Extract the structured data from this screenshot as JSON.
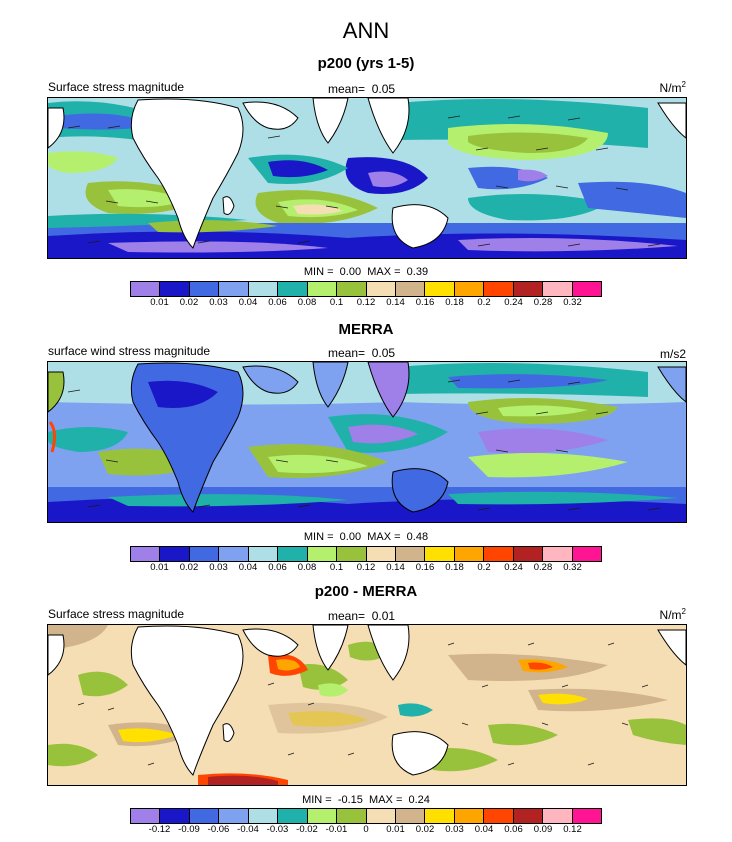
{
  "title": "ANN",
  "colors": {
    "land": "#ffffff",
    "arrow": "#1a1a1a"
  },
  "chart_data": [
    {
      "type": "heatmap",
      "title": "p200 (yrs 1-5)",
      "left_label": "Surface stress magnitude",
      "mean_label": "mean=",
      "mean_value": "0.05",
      "units_base": "N/m",
      "units_sup": "2",
      "min_label": "MIN =",
      "min_value": "0.00",
      "max_label": "MAX =",
      "max_value": "0.39",
      "colorbar": {
        "labels": [
          "0.01",
          "0.02",
          "0.03",
          "0.04",
          "0.06",
          "0.08",
          "0.1",
          "0.12",
          "0.14",
          "0.16",
          "0.18",
          "0.2",
          "0.24",
          "0.28",
          "0.32"
        ],
        "colors": [
          "#9f7fe8",
          "#1a17c8",
          "#4169e1",
          "#7fa2f0",
          "#afdfe6",
          "#20b2aa",
          "#b4f06e",
          "#99c23c",
          "#f5deb3",
          "#d2b48c",
          "#ffe000",
          "#ffa500",
          "#ff4500",
          "#b22222",
          "#ffb6c1",
          "#ff1493"
        ]
      },
      "grid": "off",
      "legend": "bottom"
    },
    {
      "type": "heatmap",
      "title": "MERRA",
      "left_label": "surface wind stress magnitude",
      "mean_label": "mean=",
      "mean_value": "0.05",
      "units_base": "m/s2",
      "units_sup": "",
      "min_label": "MIN =",
      "min_value": "0.00",
      "max_label": "MAX =",
      "max_value": "0.48",
      "colorbar": {
        "labels": [
          "0.01",
          "0.02",
          "0.03",
          "0.04",
          "0.06",
          "0.08",
          "0.1",
          "0.12",
          "0.14",
          "0.16",
          "0.18",
          "0.2",
          "0.24",
          "0.28",
          "0.32"
        ],
        "colors": [
          "#9f7fe8",
          "#1a17c8",
          "#4169e1",
          "#7fa2f0",
          "#afdfe6",
          "#20b2aa",
          "#b4f06e",
          "#99c23c",
          "#f5deb3",
          "#d2b48c",
          "#ffe000",
          "#ffa500",
          "#ff4500",
          "#b22222",
          "#ffb6c1",
          "#ff1493"
        ]
      },
      "grid": "off",
      "legend": "bottom"
    },
    {
      "type": "heatmap",
      "title": "p200 - MERRA",
      "left_label": "Surface stress magnitude",
      "mean_label": "mean=",
      "mean_value": "0.01",
      "units_base": "N/m",
      "units_sup": "2",
      "min_label": "MIN =",
      "min_value": "-0.15",
      "max_label": "MAX =",
      "max_value": "0.24",
      "colorbar": {
        "labels": [
          "-0.12",
          "-0.09",
          "-0.06",
          "-0.04",
          "-0.03",
          "-0.02",
          "-0.01",
          "0",
          "0.01",
          "0.02",
          "0.03",
          "0.04",
          "0.06",
          "0.09",
          "0.12"
        ],
        "colors": [
          "#9f7fe8",
          "#1a17c8",
          "#4169e1",
          "#7fa2f0",
          "#afdfe6",
          "#20b2aa",
          "#b4f06e",
          "#99c23c",
          "#f5deb3",
          "#d2b48c",
          "#ffe000",
          "#ffa500",
          "#ff4500",
          "#b22222",
          "#ffb6c1",
          "#ff1493"
        ]
      },
      "grid": "off",
      "legend": "bottom"
    }
  ]
}
